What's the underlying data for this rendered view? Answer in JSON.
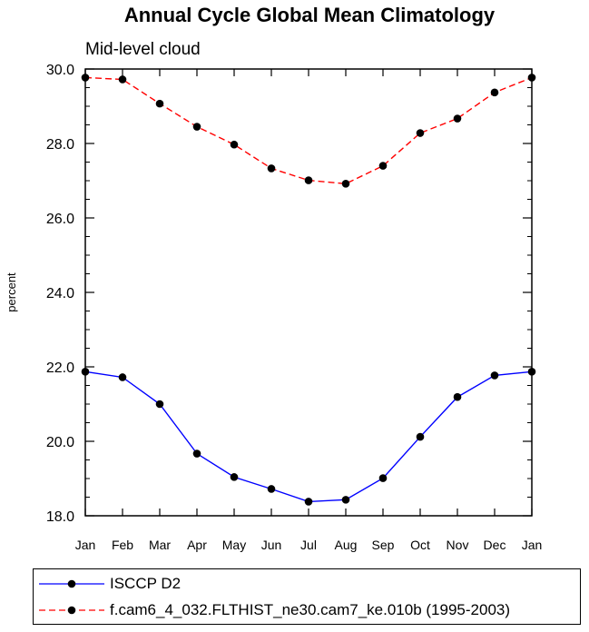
{
  "chart_data": {
    "type": "line",
    "title": "Annual Cycle Global Mean Climatology",
    "subtitle": "Mid-level cloud",
    "ylabel": "percent",
    "xlabel": "",
    "categories": [
      "Jan",
      "Feb",
      "Mar",
      "Apr",
      "May",
      "Jun",
      "Jul",
      "Aug",
      "Sep",
      "Oct",
      "Nov",
      "Dec",
      "Jan"
    ],
    "ylim": [
      18.0,
      30.0
    ],
    "yticks": [
      "18.0",
      "20.0",
      "22.0",
      "24.0",
      "26.0",
      "28.0",
      "30.0"
    ],
    "grid": false,
    "legend_position": "bottom",
    "series": [
      {
        "name": "ISCCP D2",
        "color": "#0000ff",
        "line_style": "solid",
        "marker": "filled-circle",
        "values": [
          21.87,
          21.72,
          21.0,
          19.67,
          19.04,
          18.72,
          18.38,
          18.43,
          19.01,
          20.12,
          21.19,
          21.77,
          21.87
        ]
      },
      {
        "name": "f.cam6_4_032.FLTHIST_ne30.cam7_ke.010b (1995-2003)",
        "color": "#ff0000",
        "line_style": "dashed",
        "marker": "filled-circle",
        "values": [
          29.77,
          29.72,
          29.07,
          28.45,
          27.97,
          27.33,
          27.01,
          26.92,
          27.4,
          28.28,
          28.67,
          29.37,
          29.77
        ]
      }
    ]
  }
}
